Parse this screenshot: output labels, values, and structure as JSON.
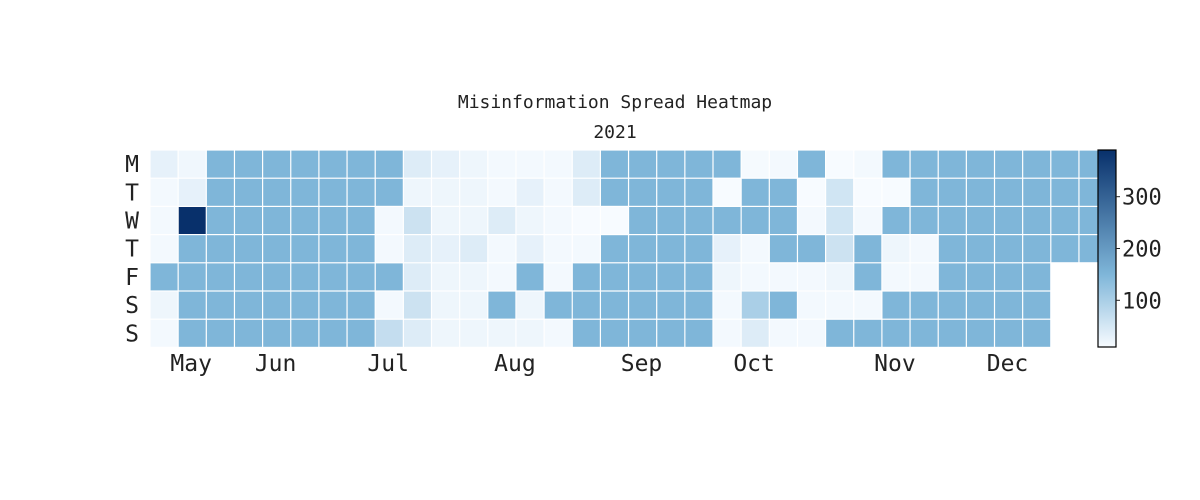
{
  "chart_data": {
    "type": "heatmap",
    "title": "Misinformation Spread Heatmap",
    "subtitle": "2021",
    "row_labels": [
      "M",
      "T",
      "W",
      "T",
      "F",
      "S",
      "S"
    ],
    "month_labels": [
      {
        "label": "May",
        "week": 1
      },
      {
        "label": "Jun",
        "week": 4
      },
      {
        "label": "Jul",
        "week": 8
      },
      {
        "label": "Aug",
        "week": 12.5
      },
      {
        "label": "Sep",
        "week": 17
      },
      {
        "label": "Oct",
        "week": 21
      },
      {
        "label": "Nov",
        "week": 26
      },
      {
        "label": "Dec",
        "week": 30
      }
    ],
    "colorbar": {
      "min": 10,
      "max": 390,
      "ticks": [
        100,
        200,
        300
      ]
    },
    "colors": {
      "low": "#f7fbff",
      "mid": "#7fb6d9",
      "high": "#08306b"
    },
    "values": [
      [
        30,
        18,
        150,
        150,
        150,
        150,
        150,
        150,
        150,
        40,
        30,
        20,
        15,
        15,
        15,
        40,
        150,
        150,
        150,
        150,
        150,
        12,
        15,
        150,
        10,
        15,
        150,
        150,
        150,
        150,
        150,
        150,
        150,
        150
      ],
      [
        15,
        30,
        150,
        150,
        150,
        150,
        150,
        150,
        150,
        20,
        20,
        20,
        15,
        30,
        15,
        40,
        150,
        150,
        150,
        150,
        10,
        150,
        150,
        10,
        55,
        10,
        10,
        150,
        150,
        150,
        150,
        150,
        150,
        150
      ],
      [
        15,
        390,
        150,
        150,
        150,
        150,
        150,
        150,
        15,
        60,
        20,
        20,
        40,
        20,
        15,
        10,
        10,
        150,
        150,
        150,
        150,
        150,
        150,
        15,
        55,
        15,
        150,
        150,
        150,
        150,
        150,
        150,
        150,
        150
      ],
      [
        15,
        150,
        150,
        150,
        150,
        150,
        150,
        150,
        15,
        40,
        30,
        40,
        15,
        30,
        15,
        15,
        150,
        150,
        150,
        150,
        30,
        15,
        150,
        150,
        60,
        150,
        20,
        15,
        150,
        150,
        150,
        150,
        150,
        150
      ],
      [
        150,
        150,
        150,
        150,
        150,
        150,
        150,
        150,
        150,
        40,
        20,
        20,
        15,
        150,
        15,
        150,
        150,
        150,
        150,
        150,
        20,
        15,
        15,
        15,
        20,
        150,
        15,
        15,
        150,
        150,
        150,
        150,
        null,
        null
      ],
      [
        20,
        150,
        150,
        150,
        150,
        150,
        150,
        150,
        15,
        60,
        20,
        20,
        150,
        20,
        150,
        150,
        150,
        150,
        150,
        150,
        15,
        100,
        150,
        15,
        15,
        15,
        150,
        150,
        150,
        150,
        150,
        150,
        null,
        null
      ],
      [
        15,
        150,
        150,
        150,
        150,
        150,
        150,
        150,
        70,
        40,
        20,
        20,
        20,
        20,
        15,
        150,
        150,
        150,
        150,
        150,
        15,
        40,
        15,
        15,
        150,
        150,
        150,
        150,
        150,
        150,
        150,
        150,
        null,
        null
      ]
    ]
  }
}
